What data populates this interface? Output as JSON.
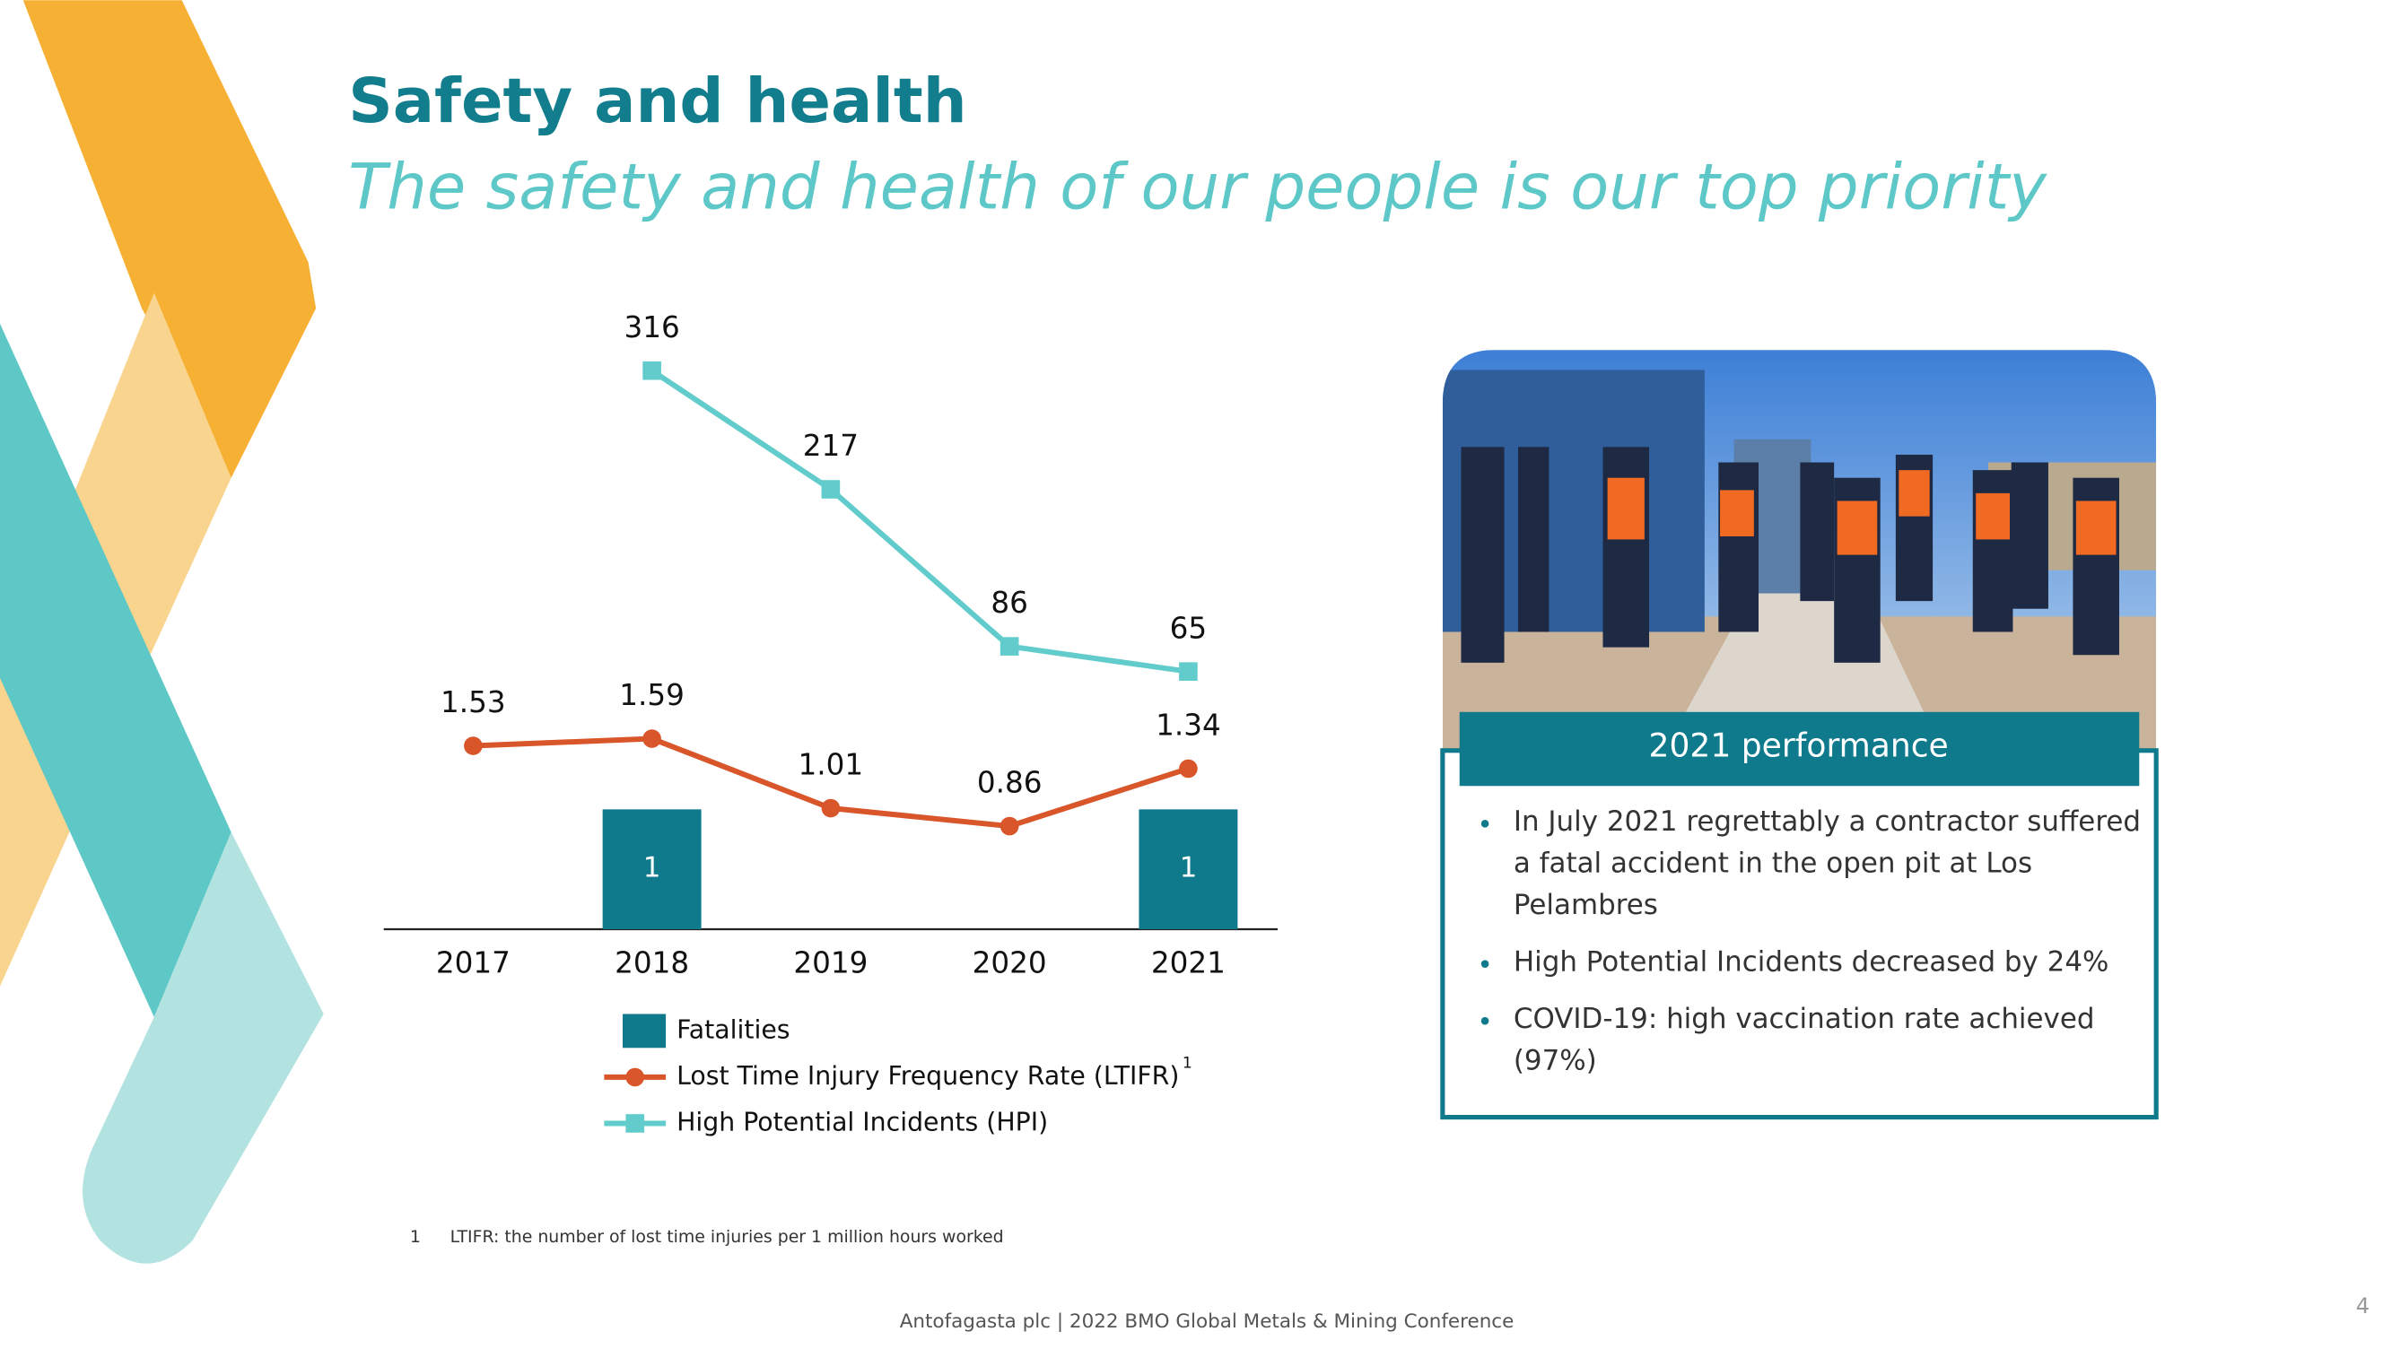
{
  "slide": {
    "title": "Safety and health",
    "subtitle": "The safety and health of our people is our top priority",
    "footnote_number": "1",
    "footnote": "LTIFR: the number of lost time injuries per 1 million hours worked",
    "footer": "Antofagasta plc | 2022 BMO Global Metals & Mining Conference",
    "page_number": "4"
  },
  "card": {
    "header": "2021 performance",
    "bullets": [
      "In July 2021 regrettably a contractor suffered a fatal accident in the open pit at Los Pelambres",
      "High Potential Incidents decreased by 24%",
      "COVID-19: high vaccination rate achieved (97%)"
    ]
  },
  "chart_data": {
    "type": "combo",
    "categories": [
      "2017",
      "2018",
      "2019",
      "2020",
      "2021"
    ],
    "ylim": [
      0,
      5
    ],
    "y2lim": [
      -150,
      350
    ],
    "legend_note": "1",
    "series": [
      {
        "name": "Fatalities",
        "type": "bar",
        "color": "#0f7a8c",
        "values": [
          null,
          1,
          null,
          null,
          1
        ]
      },
      {
        "name": "Lost Time Injury Frequency Rate (LTIFR)",
        "type": "line",
        "marker": "circle",
        "color": "#d9562a",
        "values": [
          1.53,
          1.59,
          1.01,
          0.86,
          1.34
        ]
      },
      {
        "name": "High Potential Incidents (HPI)",
        "type": "line",
        "marker": "square",
        "color": "#62cccc",
        "axis": "y2",
        "values": [
          null,
          316,
          217,
          86,
          65
        ]
      }
    ]
  }
}
